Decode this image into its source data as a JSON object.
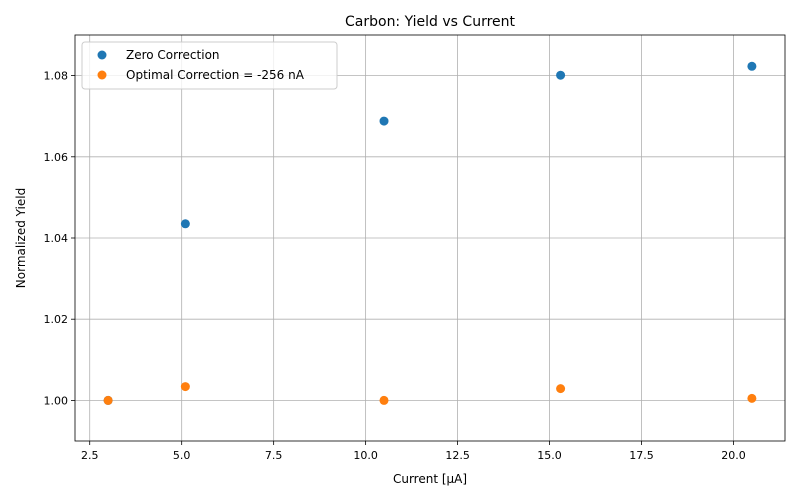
{
  "chart_data": {
    "type": "scatter",
    "title": "Carbon: Yield vs Current",
    "xlabel": "Current [μA]",
    "ylabel": "Normalized Yield",
    "xlim": [
      2.1,
      21.4
    ],
    "ylim": [
      0.99,
      1.09
    ],
    "xticks": [
      2.5,
      5.0,
      7.5,
      10.0,
      12.5,
      15.0,
      17.5,
      20.0
    ],
    "xtick_labels": [
      "2.5",
      "5.0",
      "7.5",
      "10.0",
      "12.5",
      "15.0",
      "17.5",
      "20.0"
    ],
    "yticks": [
      1.0,
      1.02,
      1.04,
      1.06,
      1.08
    ],
    "ytick_labels": [
      "1.00",
      "1.02",
      "1.04",
      "1.06",
      "1.08"
    ],
    "grid": true,
    "legend_position": "top-left",
    "series": [
      {
        "name": "Zero Correction",
        "color": "#1f77b4",
        "x": [
          3.0,
          5.1,
          10.5,
          15.3,
          20.5
        ],
        "y": [
          1.0,
          1.0435,
          1.0688,
          1.0801,
          1.0823
        ]
      },
      {
        "name": "Optimal Correction = -256 nA",
        "color": "#ff7f0e",
        "x": [
          3.0,
          5.1,
          10.5,
          15.3,
          20.5
        ],
        "y": [
          1.0,
          1.0034,
          1.0,
          1.0029,
          1.0005
        ]
      }
    ]
  }
}
